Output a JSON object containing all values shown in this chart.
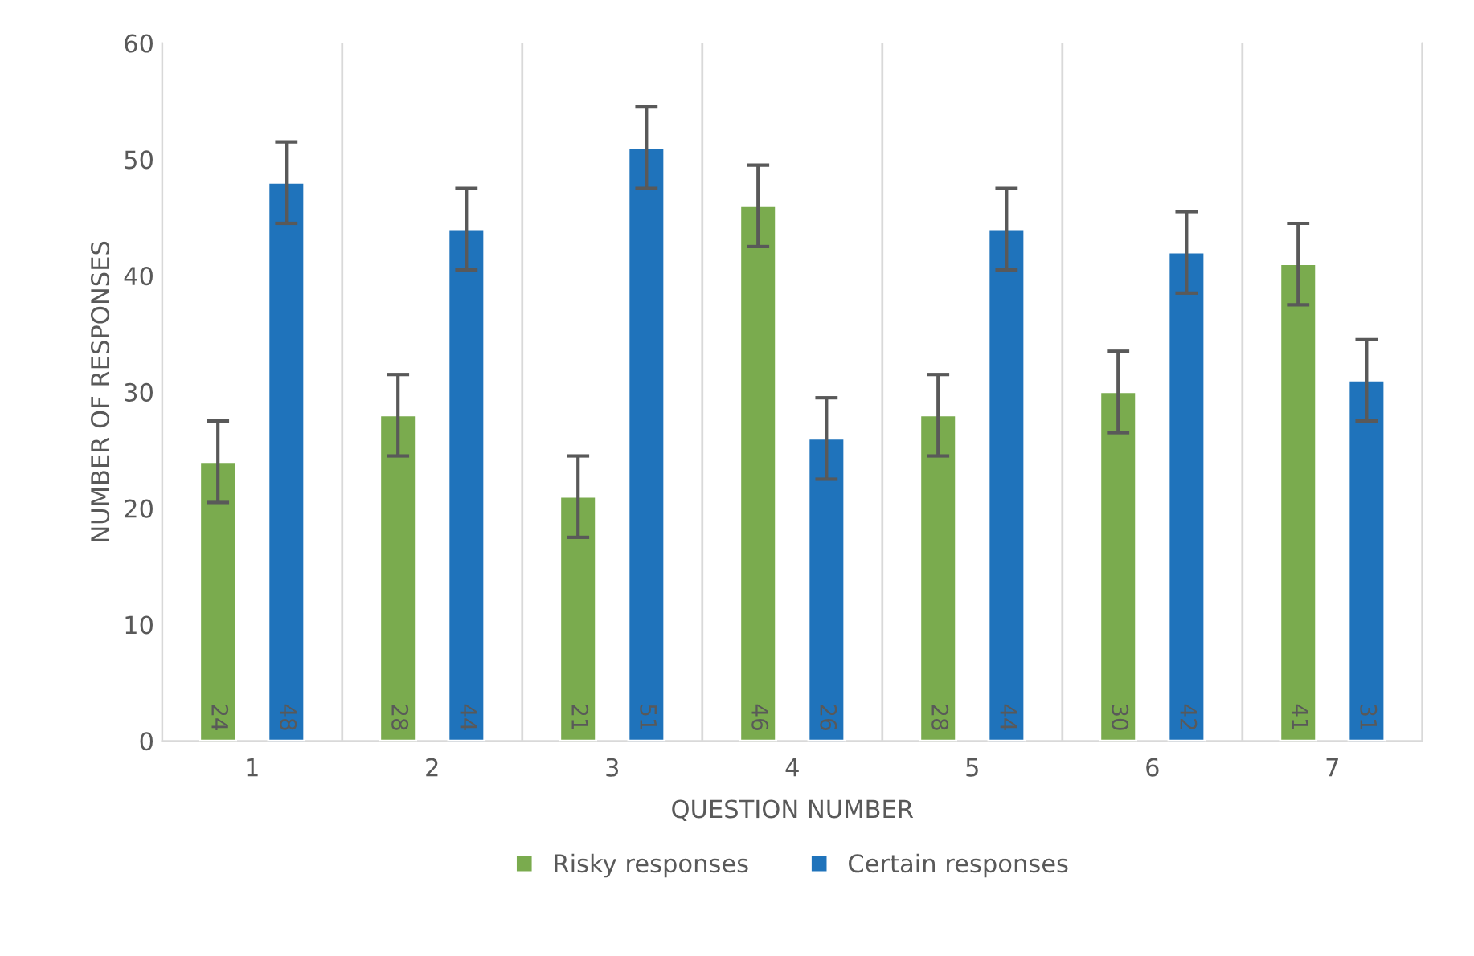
{
  "chart_data": {
    "type": "bar",
    "xlabel": "QUESTION NUMBER",
    "ylabel": "NUMBER OF RESPONSES",
    "categories": [
      "1",
      "2",
      "3",
      "4",
      "5",
      "6",
      "7"
    ],
    "series": [
      {
        "name": "Risky responses",
        "color": "#7aab4e",
        "values": [
          24,
          28,
          21,
          46,
          28,
          30,
          41
        ],
        "errors": [
          3.5,
          3.5,
          3.5,
          3.5,
          3.5,
          3.5,
          3.5
        ]
      },
      {
        "name": "Certain responses",
        "color": "#1f73bb",
        "values": [
          48,
          44,
          51,
          26,
          44,
          42,
          31
        ],
        "errors": [
          3.5,
          3.5,
          3.5,
          3.5,
          3.5,
          3.5,
          3.5
        ]
      }
    ],
    "ylim": [
      0,
      60
    ],
    "yticks": [
      0,
      10,
      20,
      30,
      40,
      50,
      60
    ],
    "grid": "x",
    "legend": "bottom",
    "data_labels": true
  }
}
